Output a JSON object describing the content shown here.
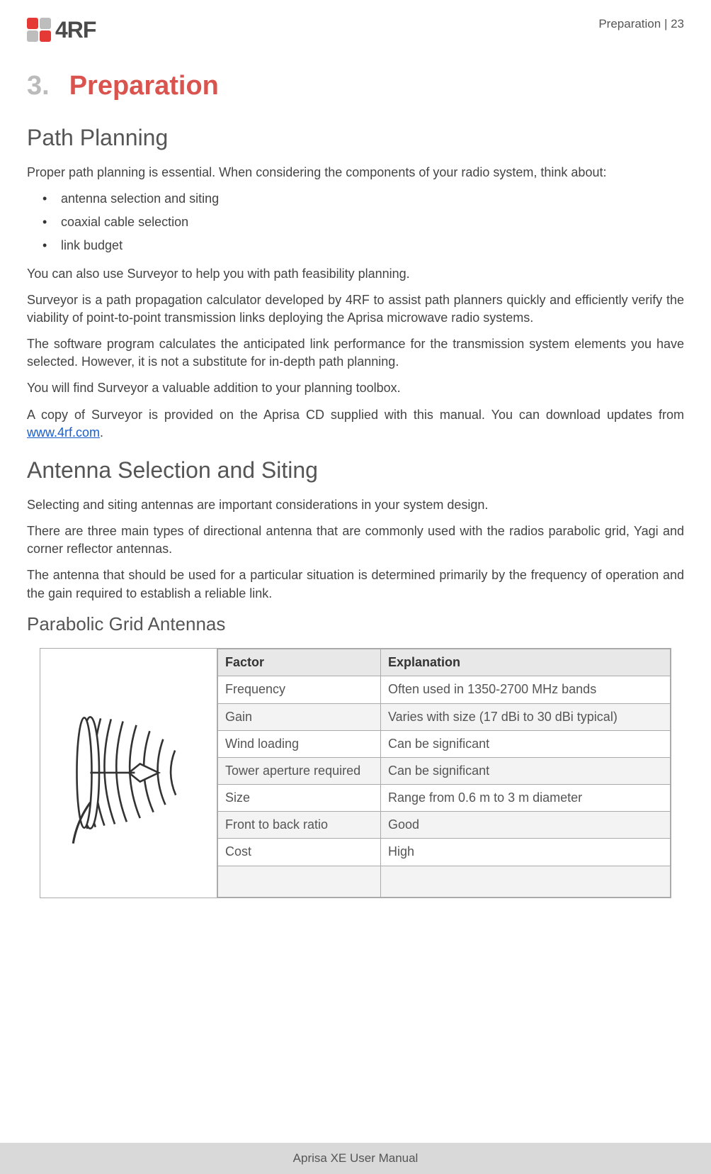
{
  "header": {
    "breadcrumb": "Preparation  |  23",
    "logo_text": "4RF",
    "logo_colors": [
      "#e53935",
      "#bdbdbd",
      "#bdbdbd",
      "#e53935"
    ]
  },
  "chapter": {
    "number": "3.",
    "title": "Preparation"
  },
  "section1": {
    "heading": "Path Planning",
    "intro": "Proper path planning is essential.  When considering the components of your radio system, think about:",
    "bullets": [
      "antenna selection and siting",
      "coaxial cable selection",
      "link budget"
    ],
    "p1": "You can also use Surveyor to help you with path feasibility planning.",
    "p2": "Surveyor is a path propagation calculator developed by 4RF to assist path planners quickly and efficiently verify the viability of point-to-point transmission links deploying the Aprisa microwave radio systems.",
    "p3": "The software program calculates the anticipated link performance for the transmission system elements you have selected. However, it is not a substitute for in-depth path planning.",
    "p4": "You will find Surveyor a valuable addition to your planning toolbox.",
    "p5_pre": "A copy of Surveyor is provided on the Aprisa CD supplied with this manual. You can download updates from ",
    "p5_link": "www.4rf.com",
    "p5_post": "."
  },
  "section2": {
    "heading": "Antenna Selection and Siting",
    "p1": "Selecting and siting antennas are important considerations in your system design.",
    "p2": "There are three main types of directional antenna that are commonly used with the radios parabolic grid, Yagi and corner reflector antennas.",
    "p3": "The antenna that should be used for a particular situation is determined primarily by the frequency of operation and the gain required to establish a reliable link."
  },
  "section3": {
    "heading": "Parabolic Grid Antennas",
    "table": {
      "headers": [
        "Factor",
        "Explanation"
      ],
      "rows": [
        {
          "factor": "Frequency",
          "explanation": "Often used in 1350-2700 MHz bands",
          "shaded": false
        },
        {
          "factor": "Gain",
          "explanation": "Varies with size (17 dBi to 30 dBi typical)",
          "shaded": true
        },
        {
          "factor": "Wind loading",
          "explanation": "Can be significant",
          "shaded": false
        },
        {
          "factor": "Tower aperture required",
          "explanation": "Can be significant",
          "shaded": true
        },
        {
          "factor": "Size",
          "explanation": "Range from 0.6 m to 3 m diameter",
          "shaded": false
        },
        {
          "factor": "Front to back ratio",
          "explanation": "Good",
          "shaded": true
        },
        {
          "factor": "Cost",
          "explanation": "High",
          "shaded": false
        }
      ]
    }
  },
  "footer": {
    "text": "Aprisa XE User Manual"
  }
}
